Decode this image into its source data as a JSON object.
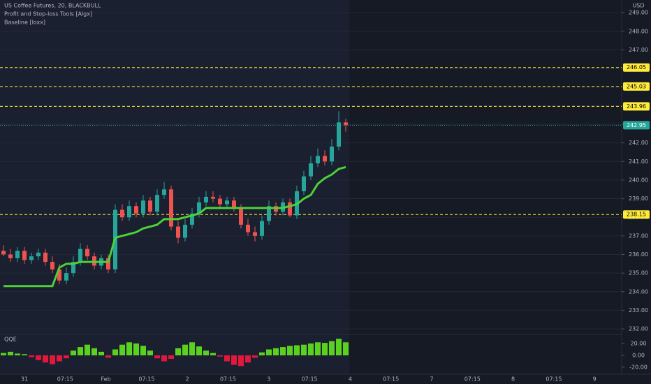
{
  "chart_data": [
    {
      "type": "candlestick",
      "title": "US Coffee Futures, 20, BLACKBULL",
      "subtitles": [
        "Profit and Stop-loss Tools [Algx]",
        "Baseline [loxx]"
      ],
      "y_label": "USD",
      "x_labels": [
        "31",
        "07:15",
        "Feb",
        "07:15",
        "2",
        "07:15",
        "3",
        "07:15",
        "4",
        "07:15",
        "7",
        "07:15",
        "8",
        "07:15",
        "9"
      ],
      "open": [
        236.2,
        236.0,
        235.8,
        236.2,
        235.7,
        235.9,
        236.1,
        235.6,
        235.2,
        234.6,
        235.0,
        235.6,
        236.3,
        235.9,
        235.4,
        235.8,
        235.2,
        238.4,
        238.0,
        238.6,
        238.2,
        238.9,
        238.3,
        239.2,
        239.5,
        237.5,
        236.9,
        237.6,
        238.2,
        238.8,
        239.1,
        239.0,
        238.7,
        238.9,
        238.5,
        237.6,
        237.2,
        237.0,
        237.8,
        238.6,
        238.3,
        238.8,
        238.1,
        239.4,
        240.2,
        240.9,
        241.3,
        241.0,
        241.8,
        243.1
      ],
      "high": [
        236.5,
        236.3,
        236.4,
        236.4,
        236.1,
        236.3,
        236.3,
        235.9,
        235.5,
        235.3,
        235.9,
        236.6,
        236.5,
        236.1,
        236.0,
        236.0,
        238.7,
        238.7,
        238.9,
        238.8,
        239.2,
        239.1,
        239.5,
        239.9,
        239.7,
        237.8,
        237.9,
        238.5,
        239.1,
        239.4,
        239.4,
        239.2,
        239.1,
        239.1,
        238.7,
        237.9,
        237.5,
        238.1,
        238.9,
        238.8,
        239.0,
        239.0,
        239.7,
        240.5,
        241.3,
        241.7,
        241.6,
        242.2,
        243.7,
        243.3
      ],
      "low": [
        235.9,
        235.6,
        235.6,
        235.5,
        235.5,
        235.7,
        235.4,
        235.0,
        234.4,
        234.4,
        234.8,
        235.4,
        235.7,
        235.2,
        235.2,
        235.0,
        235.0,
        237.8,
        237.8,
        238.0,
        238.0,
        238.1,
        238.1,
        239.0,
        237.3,
        236.6,
        236.7,
        237.4,
        238.0,
        238.6,
        238.8,
        238.5,
        238.5,
        238.3,
        237.4,
        237.0,
        236.7,
        236.8,
        237.6,
        238.1,
        238.1,
        238.0,
        237.9,
        239.2,
        240.0,
        240.7,
        240.8,
        240.8,
        241.6,
        242.6
      ],
      "close": [
        236.0,
        235.8,
        236.2,
        235.7,
        235.9,
        236.1,
        235.6,
        235.2,
        234.6,
        235.0,
        235.6,
        236.3,
        235.9,
        235.4,
        235.8,
        235.2,
        238.4,
        238.0,
        238.6,
        238.2,
        238.9,
        238.3,
        239.2,
        239.5,
        237.5,
        236.9,
        237.6,
        238.2,
        238.8,
        239.1,
        239.0,
        238.7,
        238.9,
        238.5,
        237.6,
        237.2,
        237.0,
        237.8,
        238.6,
        238.3,
        238.8,
        238.1,
        239.4,
        240.2,
        240.9,
        241.3,
        241.0,
        241.8,
        243.1,
        242.95
      ],
      "up_color": "#26a69a",
      "down_color": "#ef5350",
      "overlay": {
        "color": "#4cd137",
        "values": [
          234.3,
          234.3,
          234.3,
          234.3,
          234.3,
          234.3,
          234.3,
          234.3,
          235.3,
          235.5,
          235.5,
          235.6,
          235.6,
          235.6,
          235.6,
          235.6,
          236.9,
          237.0,
          237.1,
          237.2,
          237.4,
          237.5,
          237.6,
          237.9,
          237.9,
          237.9,
          238.0,
          238.1,
          238.2,
          238.5,
          238.5,
          238.5,
          238.5,
          238.5,
          238.5,
          238.5,
          238.5,
          238.5,
          238.5,
          238.5,
          238.5,
          238.6,
          238.7,
          239.0,
          239.2,
          239.8,
          240.1,
          240.3,
          240.6,
          240.7
        ]
      },
      "levels": [
        246.05,
        245.03,
        243.96,
        238.15
      ],
      "level_color": "#ffeb3b",
      "last": 242.95,
      "last_color": "#26a69a",
      "ylim": [
        231.74,
        249.68
      ],
      "yticks": [
        {
          "value": 232,
          "label": "232.00"
        },
        {
          "value": 233,
          "label": "233.00"
        },
        {
          "value": 234,
          "label": "234.00"
        },
        {
          "value": 235,
          "label": "235.00"
        },
        {
          "value": 236,
          "label": "236.00"
        },
        {
          "value": 237,
          "label": "237.00"
        },
        {
          "value": 238,
          "label": "238.00"
        },
        {
          "value": 239,
          "label": "239.00"
        },
        {
          "value": 240,
          "label": "240.00"
        },
        {
          "value": 241,
          "label": "241.00"
        },
        {
          "value": 242,
          "label": "242.00"
        },
        {
          "value": 243,
          "label": "243.00"
        },
        {
          "value": 244,
          "label": "244.00"
        },
        {
          "value": 245,
          "label": "245.00"
        },
        {
          "value": 246,
          "label": "246.00"
        },
        {
          "value": 247,
          "label": "247.00"
        },
        {
          "value": 248,
          "label": "248.00"
        },
        {
          "value": 249,
          "label": "249.00"
        }
      ],
      "grid": true
    },
    {
      "type": "bar",
      "title": "QQE",
      "values": [
        4,
        6,
        3,
        2,
        -3,
        -8,
        -12,
        -15,
        -10,
        -5,
        8,
        14,
        18,
        12,
        6,
        -4,
        10,
        18,
        22,
        20,
        16,
        8,
        -5,
        -10,
        -6,
        12,
        18,
        22,
        15,
        8,
        4,
        -2,
        -10,
        -16,
        -18,
        -12,
        -4,
        5,
        10,
        12,
        14,
        16,
        17,
        18,
        20,
        22,
        21,
        24,
        28,
        22
      ],
      "up_color": "#5bd11f",
      "down_color": "#e0183c",
      "ylim": [
        -31.8,
        34.1
      ],
      "yticks": [
        {
          "value": 20,
          "label": "20.00"
        },
        {
          "value": 0,
          "label": "0.00"
        },
        {
          "value": -20,
          "label": "-20.00"
        }
      ]
    }
  ]
}
